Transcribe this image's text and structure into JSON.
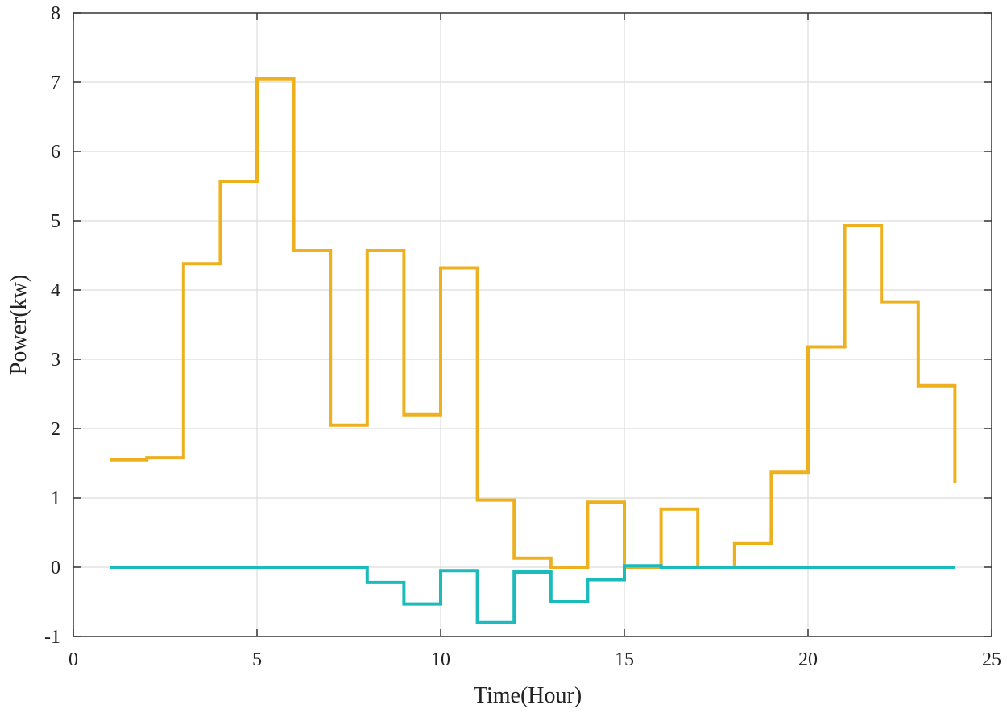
{
  "chart_data": {
    "type": "line",
    "step": "post",
    "title": "",
    "xlabel": "Time(Hour)",
    "ylabel": "Power(kw)",
    "xlim": [
      0,
      25
    ],
    "ylim": [
      -1,
      8
    ],
    "xticks": [
      0,
      5,
      10,
      15,
      20,
      25
    ],
    "yticks": [
      -1,
      0,
      1,
      2,
      3,
      4,
      5,
      6,
      7,
      8
    ],
    "grid": true,
    "legend": "none",
    "colors": {
      "series_1": "#EDB120",
      "series_2": "#1BBBBB",
      "grid": "#dcdcdc",
      "axes": "#333333"
    },
    "x": [
      1,
      2,
      3,
      4,
      5,
      6,
      7,
      8,
      9,
      10,
      11,
      12,
      13,
      14,
      15,
      16,
      17,
      18,
      19,
      20,
      21,
      22,
      23,
      24
    ],
    "series": [
      {
        "values": [
          1.55,
          1.58,
          4.38,
          5.57,
          7.05,
          4.57,
          2.05,
          4.57,
          2.2,
          4.32,
          0.97,
          0.13,
          0.0,
          0.94,
          0.0,
          0.84,
          0.0,
          0.34,
          1.37,
          3.18,
          4.93,
          3.83,
          2.62,
          1.22
        ]
      },
      {
        "values": [
          0,
          0,
          0,
          0,
          0,
          0,
          0,
          -0.22,
          -0.53,
          -0.05,
          -0.8,
          -0.07,
          -0.5,
          -0.18,
          0.02,
          0,
          0,
          0,
          0,
          0,
          0,
          0,
          0,
          0
        ]
      }
    ]
  }
}
